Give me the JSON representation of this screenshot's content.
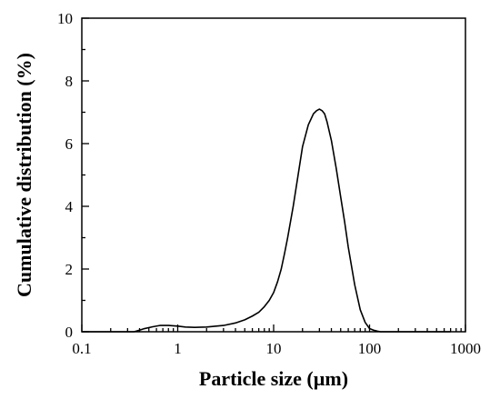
{
  "chart_data": {
    "type": "line",
    "title": "",
    "xlabel": "Particle size (µm)",
    "ylabel": "Cumulative distribution (%)",
    "xscale": "log",
    "xlim": [
      0.1,
      1000
    ],
    "ylim": [
      0,
      10
    ],
    "xticks": [
      {
        "value": 0.1,
        "label": "0.1"
      },
      {
        "value": 1,
        "label": "1"
      },
      {
        "value": 10,
        "label": "10"
      },
      {
        "value": 100,
        "label": "100"
      },
      {
        "value": 1000,
        "label": "1000"
      }
    ],
    "yticks": [
      {
        "value": 0,
        "label": "0"
      },
      {
        "value": 2,
        "label": "2"
      },
      {
        "value": 4,
        "label": "4"
      },
      {
        "value": 6,
        "label": "6"
      },
      {
        "value": 8,
        "label": "8"
      },
      {
        "value": 10,
        "label": "10"
      }
    ],
    "grid": false,
    "legend": "none",
    "line_color": "#000000",
    "series": [
      {
        "x": [
          0.1,
          0.2,
          0.35,
          0.4,
          0.45,
          0.55,
          0.65,
          0.8,
          1.0,
          1.2,
          1.5,
          2,
          3,
          4,
          5,
          6,
          7,
          8,
          9,
          10,
          11,
          12,
          13,
          14,
          16,
          18,
          20,
          23,
          26,
          28,
          30,
          32,
          34,
          36,
          40,
          45,
          50,
          55,
          60,
          70,
          80,
          90,
          100,
          110,
          120,
          130,
          700
        ],
        "y": [
          0,
          0,
          0,
          0.05,
          0.1,
          0.16,
          0.2,
          0.2,
          0.18,
          0.15,
          0.14,
          0.15,
          0.2,
          0.28,
          0.38,
          0.5,
          0.62,
          0.8,
          1.0,
          1.25,
          1.6,
          2.0,
          2.5,
          3.0,
          4.0,
          5.0,
          5.9,
          6.6,
          6.95,
          7.05,
          7.1,
          7.05,
          6.95,
          6.7,
          6.1,
          5.2,
          4.3,
          3.5,
          2.7,
          1.5,
          0.7,
          0.3,
          0.1,
          0.05,
          0.02,
          0,
          0
        ]
      }
    ]
  }
}
